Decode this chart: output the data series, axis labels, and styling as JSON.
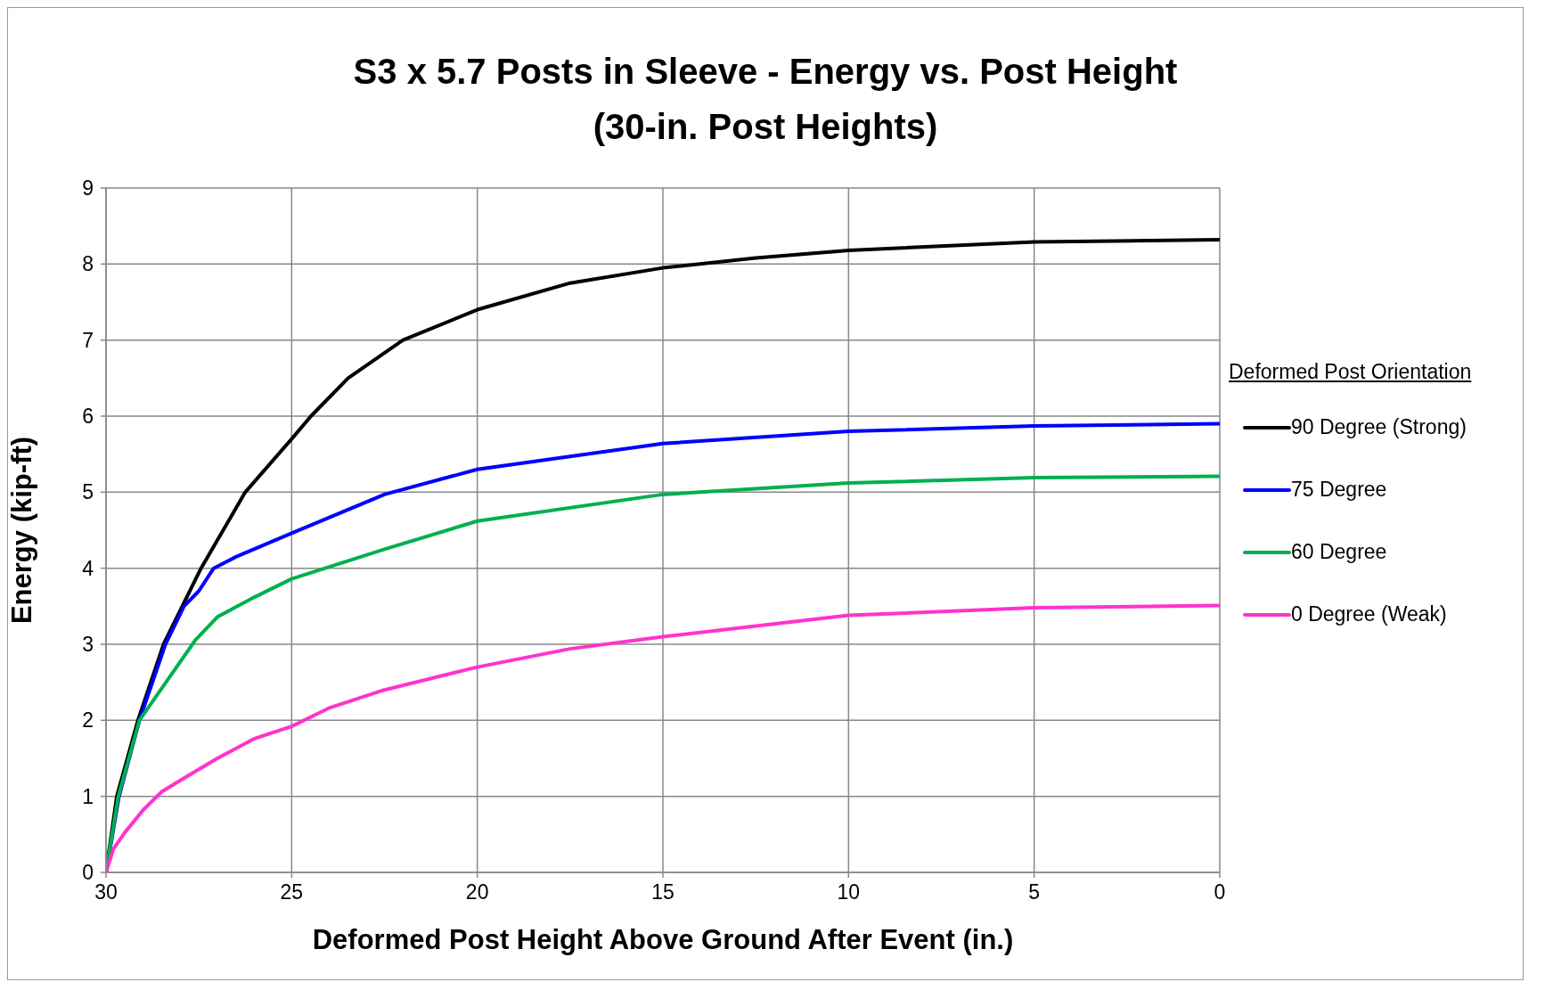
{
  "chart_data": {
    "type": "line",
    "title": "S3 x 5.7 Posts in Sleeve - Energy vs. Post Height\n(30-in. Post Heights)",
    "xlabel": "Deformed Post Height Above Ground After Event (in.)",
    "ylabel": "Energy (kip-ft)",
    "legend_title": "Deformed Post Orientation",
    "xlim": [
      30,
      0
    ],
    "xticks": [
      30,
      25,
      20,
      15,
      10,
      5,
      0
    ],
    "ylim": [
      0,
      9
    ],
    "yticks": [
      0,
      1,
      2,
      3,
      4,
      5,
      6,
      7,
      8,
      9
    ],
    "grid": true,
    "legend": "right",
    "marker": "none",
    "line_style": "solid",
    "series": [
      {
        "name": "90 Degree (Strong)",
        "color": "#000000",
        "x": [
          30,
          29.71,
          29.14,
          28.45,
          27.44,
          26.25,
          25,
          24.48,
          23.48,
          22.0,
          20,
          17.5,
          15,
          12.5,
          10,
          5,
          0
        ],
        "values": [
          0,
          1,
          2,
          3,
          4,
          5,
          5.7,
          6,
          6.5,
          7,
          7.4,
          7.75,
          7.95,
          8.08,
          8.18,
          8.29,
          8.32
        ]
      },
      {
        "name": "75 Degree",
        "color": "#0000ff",
        "x": [
          30,
          29.65,
          29.1,
          28.4,
          27.9,
          27.5,
          27.1,
          26.5,
          25,
          22.5,
          20,
          15,
          10,
          5,
          0
        ],
        "values": [
          0,
          1,
          2,
          3,
          3.5,
          3.7,
          4,
          4.15,
          4.46,
          4.97,
          5.3,
          5.64,
          5.8,
          5.87,
          5.9
        ]
      },
      {
        "name": "60 Degree",
        "color": "#00b050",
        "x": [
          30,
          29.67,
          29.1,
          27.6,
          27,
          26,
          25,
          22.5,
          20,
          15,
          10,
          5,
          0
        ],
        "values": [
          0,
          1,
          2,
          3.05,
          3.36,
          3.62,
          3.86,
          4.25,
          4.62,
          4.97,
          5.12,
          5.19,
          5.21
        ]
      },
      {
        "name": "0 Degree (Weak)",
        "color": "#ff33cc",
        "x": [
          30,
          29.8,
          29.5,
          29,
          28.5,
          28,
          27,
          26,
          25,
          24,
          22.5,
          20,
          17.5,
          15,
          10,
          5,
          0
        ],
        "values": [
          0,
          0.31,
          0.52,
          0.82,
          1.06,
          1.21,
          1.5,
          1.76,
          1.92,
          2.16,
          2.4,
          2.7,
          2.94,
          3.1,
          3.38,
          3.48,
          3.51
        ]
      }
    ]
  }
}
